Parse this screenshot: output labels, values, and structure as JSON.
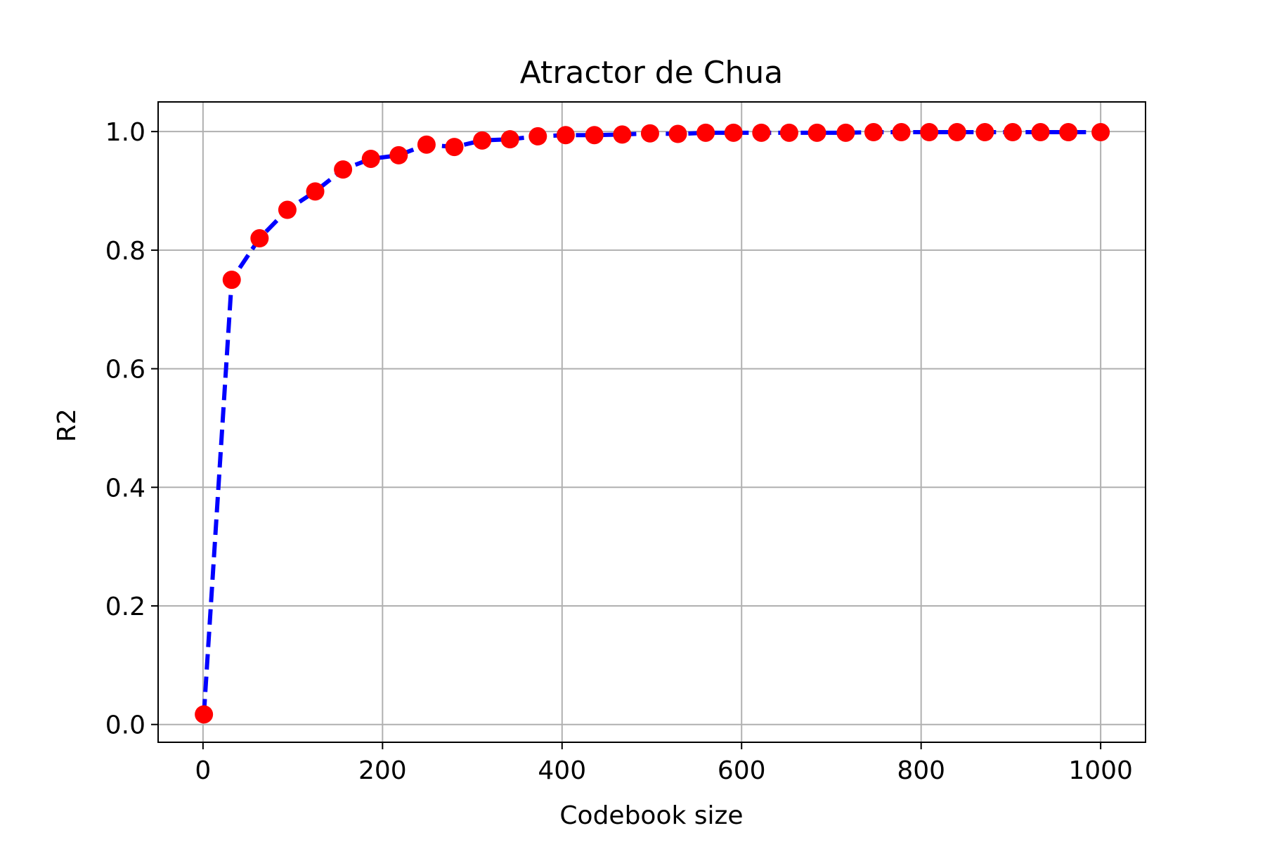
{
  "chart_data": {
    "type": "line",
    "title": "Atractor de Chua",
    "xlabel": "Codebook size",
    "ylabel": "R2",
    "xlim": [
      -50,
      1050
    ],
    "ylim": [
      -0.03,
      1.05
    ],
    "xticks": [
      0,
      200,
      400,
      600,
      800,
      1000
    ],
    "xtick_labels": [
      "0",
      "200",
      "400",
      "600",
      "800",
      "1000"
    ],
    "yticks": [
      0.0,
      0.2,
      0.4,
      0.6,
      0.8,
      1.0
    ],
    "ytick_labels": [
      "0.0",
      "0.2",
      "0.4",
      "0.6",
      "0.8",
      "1.0"
    ],
    "grid": true,
    "series": [
      {
        "line_color": "#0000ff",
        "line_style": "dashed",
        "marker_color": "#ff0000",
        "marker": "circle",
        "x": [
          1,
          32,
          63,
          94,
          125,
          156,
          187,
          218,
          249,
          280,
          311,
          342,
          373,
          404,
          436,
          467,
          498,
          529,
          560,
          591,
          622,
          653,
          684,
          716,
          747,
          778,
          809,
          840,
          871,
          902,
          933,
          964,
          1000
        ],
        "y": [
          0.017,
          0.75,
          0.82,
          0.868,
          0.899,
          0.936,
          0.954,
          0.96,
          0.978,
          0.974,
          0.985,
          0.987,
          0.992,
          0.994,
          0.994,
          0.995,
          0.997,
          0.996,
          0.998,
          0.998,
          0.998,
          0.998,
          0.998,
          0.998,
          0.999,
          0.999,
          0.999,
          0.999,
          0.999,
          0.999,
          0.999,
          0.999,
          0.999
        ]
      }
    ]
  }
}
